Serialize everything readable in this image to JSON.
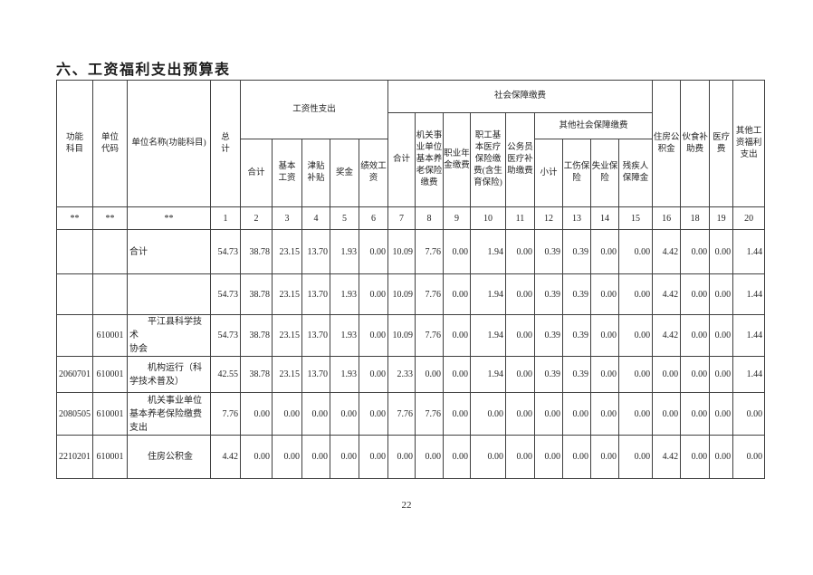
{
  "page": {
    "title": "六、工资福利支出预算表",
    "page_number": "22"
  },
  "table": {
    "header": {
      "func_subject": "功能\n科目",
      "unit_code": "单位\n代码",
      "unit_name": "单位名称(功能科目)",
      "grand_total": "总\n计",
      "salary_expenditure": "工资性支出",
      "salary_total": "合计",
      "basic_salary": "基本\n工资",
      "allowance": "津贴\n补贴",
      "bonus": "奖金",
      "performance_salary": "绩效工\n资",
      "social_security": "社会保障缴费",
      "ss_total": "合计",
      "pension": "机关事\n业单位\n基本养\n老保险\n缴费",
      "occupational_annuity": "职业年\n金缴费",
      "medical_insurance": "职工基\n本医疗\n保险缴\n费(含生\n育保险)",
      "civil_servant_medical": "公务员\n医疗补\n助缴费",
      "other_social_security": "其他社会保障缴费",
      "oss_subtotal": "小计",
      "work_injury": "工伤保\n险",
      "unemployment": "失业保\n险",
      "disability_fund": "残疾人\n保障金",
      "housing_fund": "住房公\n积金",
      "meal_subsidy": "伙食补\n助费",
      "medical_fee": "医疗\n费",
      "other_welfare": "其他工\n资福利\n支出"
    },
    "index_row": [
      "**",
      "**",
      "**",
      "1",
      "2",
      "3",
      "4",
      "5",
      "6",
      "7",
      "8",
      "9",
      "10",
      "11",
      "12",
      "13",
      "14",
      "15",
      "16",
      "18",
      "19",
      "20"
    ],
    "rows": [
      {
        "func": "",
        "code": "",
        "name": "合计",
        "indent": false,
        "values": [
          "54.73",
          "38.78",
          "23.15",
          "13.70",
          "1.93",
          "0.00",
          "10.09",
          "7.76",
          "0.00",
          "1.94",
          "0.00",
          "0.39",
          "0.39",
          "0.00",
          "0.00",
          "4.42",
          "0.00",
          "0.00",
          "1.44"
        ]
      },
      {
        "func": "",
        "code": "",
        "name": "",
        "indent": false,
        "values": [
          "54.73",
          "38.78",
          "23.15",
          "13.70",
          "1.93",
          "0.00",
          "10.09",
          "7.76",
          "0.00",
          "1.94",
          "0.00",
          "0.39",
          "0.39",
          "0.00",
          "0.00",
          "4.42",
          "0.00",
          "0.00",
          "1.44"
        ]
      },
      {
        "func": "",
        "code": "610001",
        "name": "平江县科学技术\n协会",
        "indent": true,
        "values": [
          "54.73",
          "38.78",
          "23.15",
          "13.70",
          "1.93",
          "0.00",
          "10.09",
          "7.76",
          "0.00",
          "1.94",
          "0.00",
          "0.39",
          "0.39",
          "0.00",
          "0.00",
          "4.42",
          "0.00",
          "0.00",
          "1.44"
        ]
      },
      {
        "func": "2060701",
        "code": "610001",
        "name": "机构运行（科\n学技术普及）",
        "indent": true,
        "values": [
          "42.55",
          "38.78",
          "23.15",
          "13.70",
          "1.93",
          "0.00",
          "2.33",
          "0.00",
          "0.00",
          "1.94",
          "0.00",
          "0.39",
          "0.39",
          "0.00",
          "0.00",
          "0.00",
          "0.00",
          "0.00",
          "1.44"
        ]
      },
      {
        "func": "2080505",
        "code": "610001",
        "name": "机关事业单位\n基本养老保险缴费\n支出",
        "indent": true,
        "values": [
          "7.76",
          "0.00",
          "0.00",
          "0.00",
          "0.00",
          "0.00",
          "7.76",
          "7.76",
          "0.00",
          "0.00",
          "0.00",
          "0.00",
          "0.00",
          "0.00",
          "0.00",
          "0.00",
          "0.00",
          "0.00",
          "0.00"
        ]
      },
      {
        "func": "2210201",
        "code": "610001",
        "name": "住房公积金",
        "indent": true,
        "values": [
          "4.42",
          "0.00",
          "0.00",
          "0.00",
          "0.00",
          "0.00",
          "0.00",
          "0.00",
          "0.00",
          "0.00",
          "0.00",
          "0.00",
          "0.00",
          "0.00",
          "0.00",
          "4.42",
          "0.00",
          "0.00",
          "0.00"
        ]
      }
    ]
  }
}
